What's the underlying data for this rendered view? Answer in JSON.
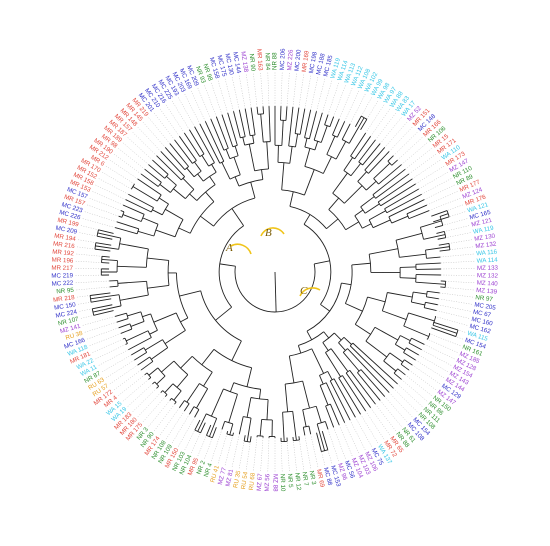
{
  "palette": {
    "WA": "#36c6e6",
    "MR": "#e2473c",
    "MZ": "#9b3fd1",
    "NR": "#2e8f2e",
    "MC": "#3030c8",
    "RU": "#e6a020",
    "tree": "#222222",
    "guide": "#b8b8b8",
    "highlight": "#f0c419"
  },
  "clade_labels": [
    "A",
    "B",
    "C"
  ],
  "leaves": [
    "NR 88",
    "MC 206",
    "MZ 226",
    "MC 200",
    "MR 169",
    "MC 198",
    "MC 188",
    "MC 185",
    "WA 119",
    "WA 114",
    "WA 113",
    "WA 112",
    "WA 108",
    "WA 102",
    "WA 99",
    "WA 98",
    "WA 97",
    "WA 88",
    "WA 83",
    "WA 17",
    "MZ 52",
    "MR 151",
    "MC 148",
    "MR 166",
    "NR 106",
    "MR 15",
    "MR 171",
    "WA 110",
    "MR 173",
    "MZ 147",
    "NR 110",
    "NR 89",
    "MR 177",
    "MZ 124",
    "MR 176",
    "WA 121",
    "MC 165",
    "MZ 121",
    "WA 119",
    "MZ 130",
    "MZ 132",
    "WA 116",
    "WA 114",
    "MZ 133",
    "MZ 132",
    "MZ 140",
    "MZ 139",
    "NR 97",
    "MC 205",
    "MC 67",
    "MC 160",
    "MC 162",
    "WA 115",
    "MC 154",
    "NR 161",
    "MZ 185",
    "MZ 128",
    "MZ 154",
    "MZ 143",
    "MZ 144",
    "MC 129",
    "MZ 147",
    "NR 150",
    "NR 86",
    "NR 111",
    "NR 108",
    "MC 154",
    "MC 108",
    "NR 61",
    "NR 88",
    "MR 65",
    "MR 72",
    "WA 137",
    "MC 75",
    "MZ 106",
    "MZ 103",
    "MZ 104",
    "MC 56",
    "MZ 96",
    "MC 153",
    "MC 88",
    "MR 69",
    "NR 3",
    "NR 7",
    "NR 12",
    "NR 5",
    "NR 10",
    "MZ 88",
    "MZ 56",
    "MZ 67",
    "RU 68",
    "RU 54",
    "RU 35",
    "MZ 81",
    "MZ 77",
    "RU 41",
    "NR 4",
    "NR 2",
    "MR 95",
    "NR 104",
    "NR 103",
    "MR 150",
    "NR 109",
    "NR 108",
    "MR 174",
    "NR 90",
    "NR 3",
    "MR 175",
    "MR 180",
    "MR 183",
    "WA 19",
    "WA 15",
    "MR 4",
    "MR 172",
    "RU 57",
    "RU 63",
    "NR 87",
    "WA 11",
    "WA 22",
    "MR 181",
    "WA 118",
    "MC 166",
    "RU 38",
    "MZ 141",
    "NR 107",
    "MC 224",
    "MC 150",
    "MR 218",
    "NR 95",
    "MC 222",
    "MC 219",
    "MR 217",
    "MR 196",
    "MR 192",
    "MR 216",
    "MR 194",
    "MC 209",
    "MR 199",
    "MC 226",
    "MC 223",
    "MR 157",
    "MC 157",
    "MR 153",
    "MR 158",
    "MR 152",
    "MR 170",
    "MR 6",
    "MR 212",
    "MR 190",
    "MR 98",
    "MR 189",
    "MR 187",
    "MR 157",
    "MR 148",
    "MR 145",
    "MR 219",
    "MC 201",
    "MC 210",
    "MC 216",
    "MC 225",
    "MC 193",
    "MC 203",
    "MC 169",
    "MC 209",
    "NR 93",
    "NR 98",
    "MC 158",
    "MC 175",
    "MC 130",
    "MC 144",
    "MZ 138",
    "NR 90",
    "MR 163",
    "NR 84"
  ]
}
